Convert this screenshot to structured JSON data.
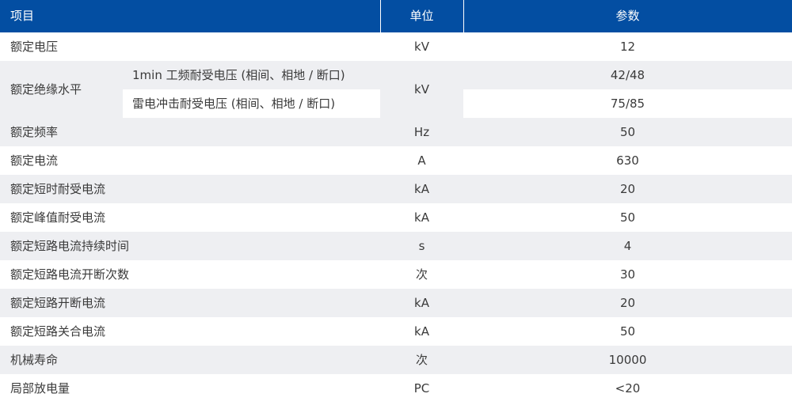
{
  "header": {
    "item": "项目",
    "unit": "单位",
    "param": "参数"
  },
  "insulation": {
    "name": "额定绝缘水平",
    "unit": "kV",
    "sub": [
      {
        "label": "1min 工频耐受电压 (相间、相地 / 断口)",
        "value": "42/48"
      },
      {
        "label": "雷电冲击耐受电压 (相间、相地 / 断口)",
        "value": "75/85"
      }
    ]
  },
  "rows": [
    {
      "name": "额定电压",
      "unit": "kV",
      "value": "12"
    },
    {
      "name": "额定频率",
      "unit": "Hz",
      "value": "50"
    },
    {
      "name": "额定电流",
      "unit": "A",
      "value": "630"
    },
    {
      "name": "额定短时耐受电流",
      "unit": "kA",
      "value": "20"
    },
    {
      "name": "额定峰值耐受电流",
      "unit": "kA",
      "value": "50"
    },
    {
      "name": "额定短路电流持续时间",
      "unit": "s",
      "value": "4"
    },
    {
      "name": "额定短路电流开断次数",
      "unit": "次",
      "value": "30"
    },
    {
      "name": "额定短路开断电流",
      "unit": "kA",
      "value": "20"
    },
    {
      "name": "额定短路关合电流",
      "unit": "kA",
      "value": "50"
    },
    {
      "name": "机械寿命",
      "unit": "次",
      "value": "10000"
    },
    {
      "name": "局部放电量",
      "unit": "PC",
      "value": "<20"
    }
  ]
}
